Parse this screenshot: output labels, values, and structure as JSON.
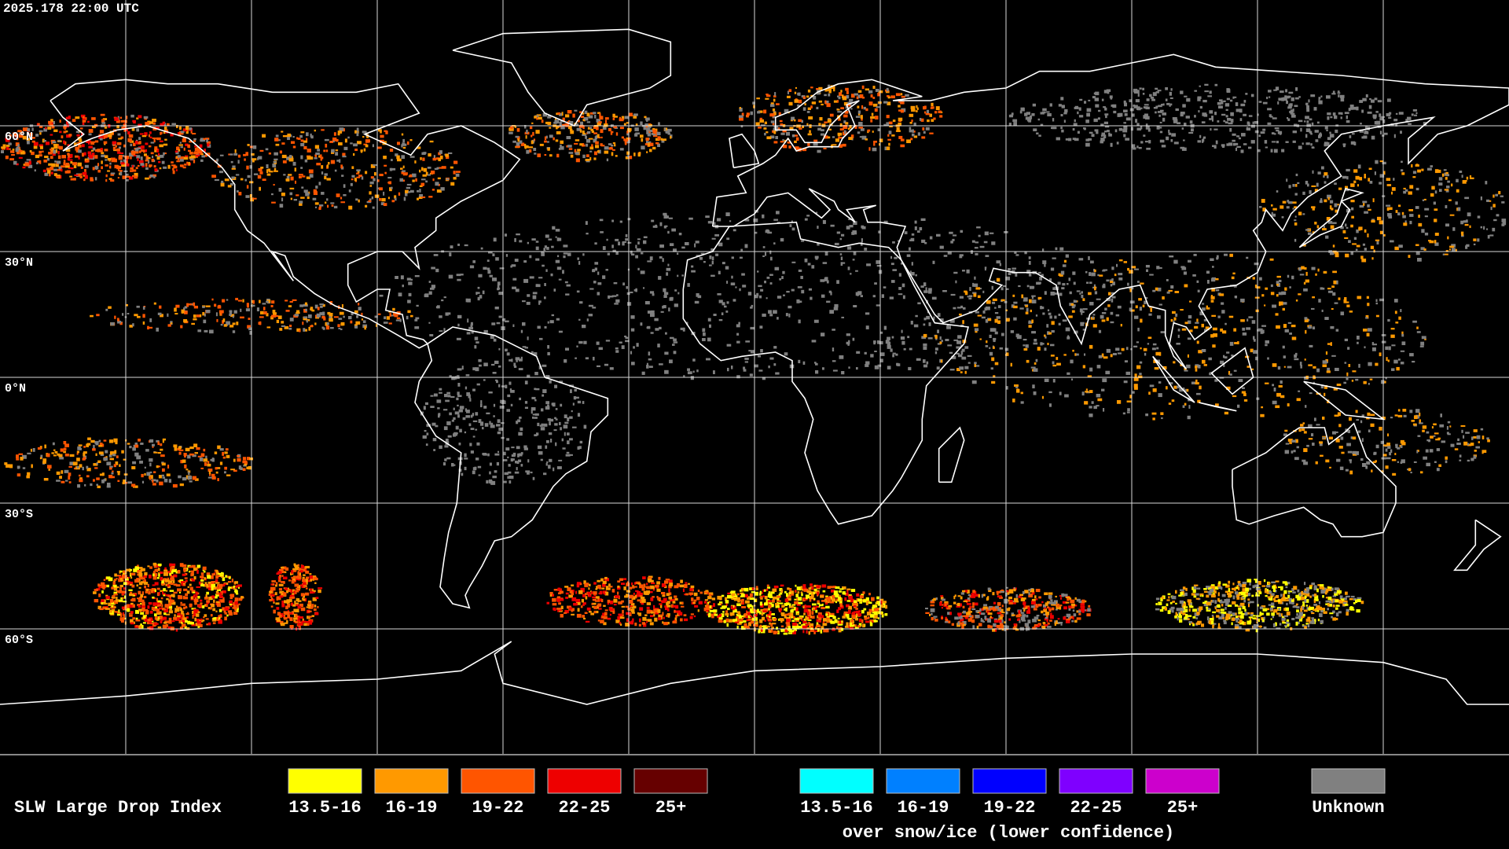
{
  "timestamp": "2025.178 22:00 UTC",
  "latitude_labels": [
    "60°N",
    "30°N",
    "0°N",
    "30°S",
    "60°S"
  ],
  "legend": {
    "title": "SLW Large Drop Index",
    "bins": [
      {
        "label": "13.5-16",
        "color": "#ffff00"
      },
      {
        "label": "16-19",
        "color": "#ff9900"
      },
      {
        "label": "19-22",
        "color": "#ff5500"
      },
      {
        "label": "22-25",
        "color": "#ee0000"
      },
      {
        "label": "25+",
        "color": "#660000"
      }
    ],
    "snow_bins": [
      {
        "label": "13.5-16",
        "color": "#00ffff"
      },
      {
        "label": "16-19",
        "color": "#0080ff"
      },
      {
        "label": "19-22",
        "color": "#0000ff"
      },
      {
        "label": "22-25",
        "color": "#7f00ff"
      },
      {
        "label": "25+",
        "color": "#cc00cc"
      }
    ],
    "snow_caption": "over snow/ice (lower confidence)",
    "unknown": {
      "label": "Unknown",
      "color": "#808080"
    }
  }
}
